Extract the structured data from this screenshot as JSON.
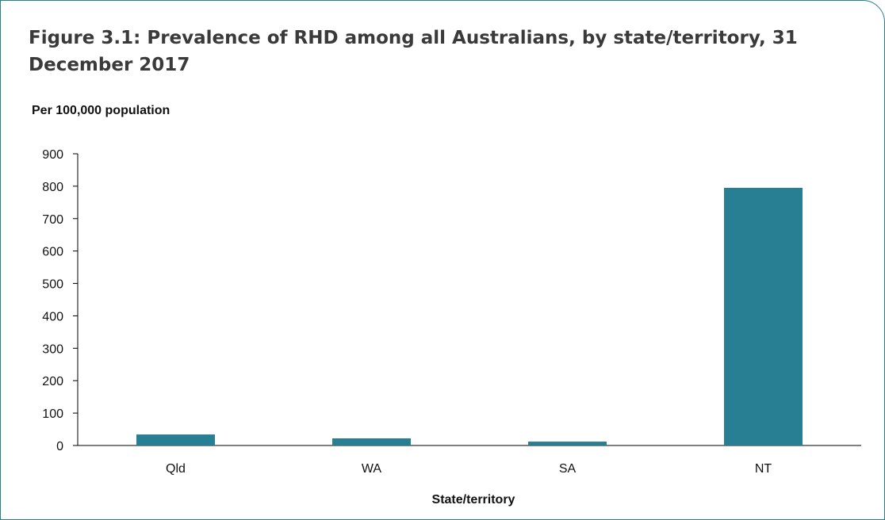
{
  "figure": {
    "title": "Figure 3.1: Prevalence of RHD among all Australians, by state/territory, 31 December 2017"
  },
  "colors": {
    "frame": "#2a7f8f",
    "bar": "#287f93",
    "axis": "#000000"
  },
  "chart_data": {
    "type": "bar",
    "categories": [
      "Qld",
      "WA",
      "SA",
      "NT"
    ],
    "values": [
      34,
      22,
      12,
      795
    ],
    "xlabel": "State/territory",
    "ylabel": "Per 100,000 population",
    "ylim": [
      0,
      900
    ],
    "yticks": [
      0,
      100,
      200,
      300,
      400,
      500,
      600,
      700,
      800,
      900
    ],
    "grid": false,
    "legend": "none"
  }
}
